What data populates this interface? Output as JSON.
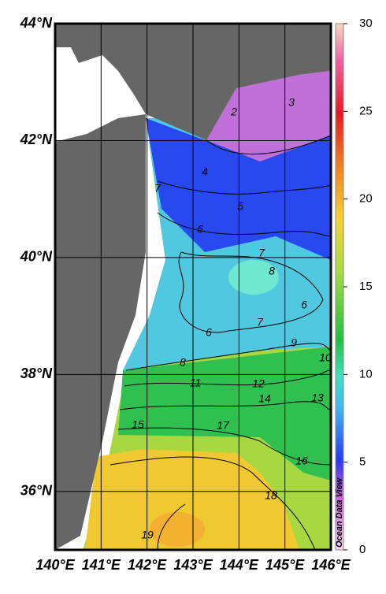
{
  "map": {
    "lonlim": [
      140,
      146
    ],
    "latlim": [
      35,
      44
    ],
    "lon_ticks": [
      {
        "value": 140,
        "label": "140°E"
      },
      {
        "value": 141,
        "label": "141°E"
      },
      {
        "value": 142,
        "label": "142°E"
      },
      {
        "value": 143,
        "label": "143°E"
      },
      {
        "value": 144,
        "label": "144°E"
      },
      {
        "value": 145,
        "label": "145°E"
      },
      {
        "value": 146,
        "label": "146°E"
      }
    ],
    "lat_ticks": [
      {
        "value": 44,
        "label": "44°N"
      },
      {
        "value": 42,
        "label": "42°N"
      },
      {
        "value": 40,
        "label": "40°N"
      },
      {
        "value": 38,
        "label": "38°N"
      },
      {
        "value": 36,
        "label": "36°N"
      }
    ]
  },
  "colorbar": {
    "lim": [
      0,
      30
    ],
    "ticks": [
      0,
      5,
      10,
      15,
      20,
      25,
      30
    ]
  },
  "contour_labels": [
    "2",
    "3",
    "4",
    "5",
    "7",
    "6",
    "7",
    "8",
    "6",
    "6",
    "7",
    "9",
    "10",
    "8",
    "11",
    "12",
    "14",
    "13",
    "15",
    "17",
    "16",
    "18",
    "19"
  ],
  "watermark": "Ocean Data View"
}
